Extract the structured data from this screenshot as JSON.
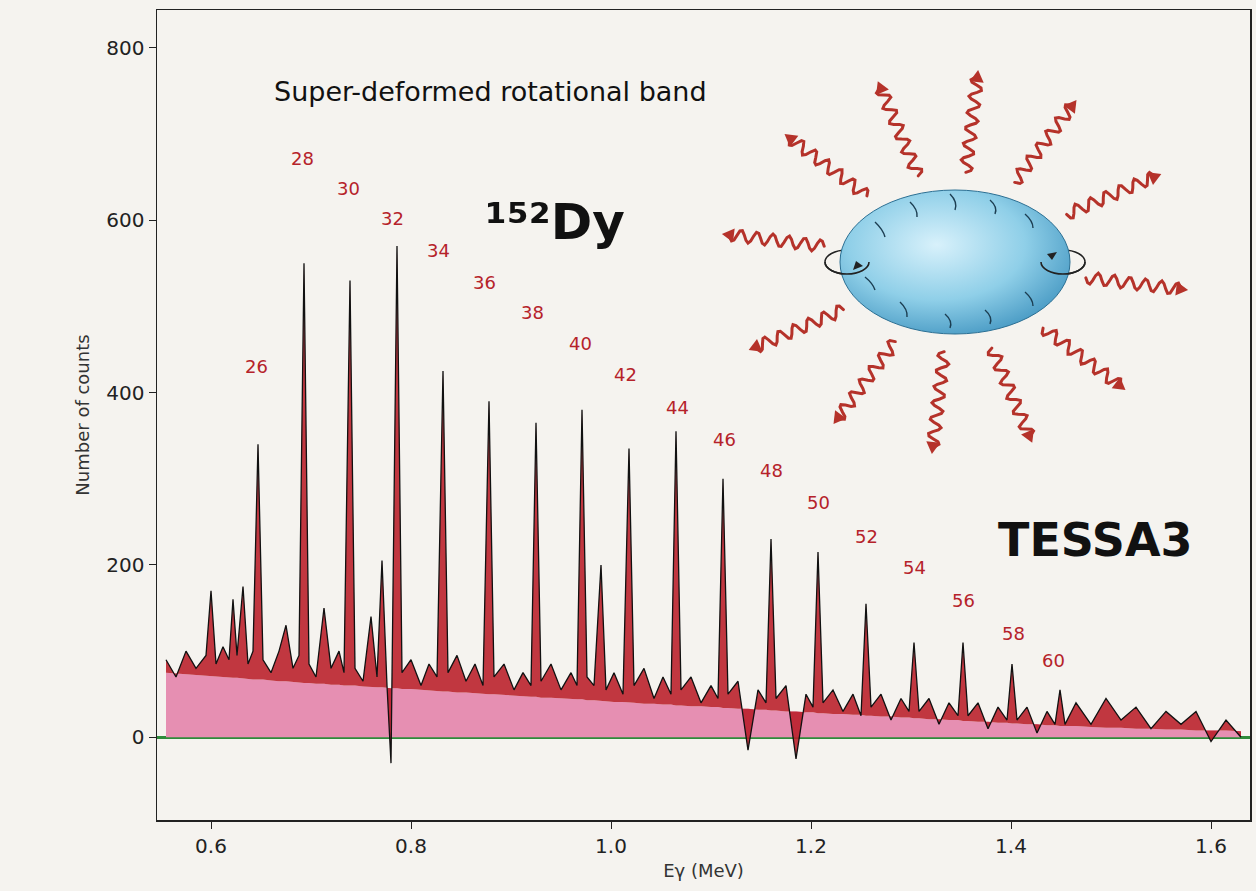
{
  "chart_data": {
    "type": "line",
    "x_label": "Eγ (MeV)",
    "y_label": "Number of counts",
    "xlim": [
      0.546,
      1.639
    ],
    "ylim": [
      -96,
      844
    ],
    "xticks": [
      0.6,
      0.8,
      {
        "value": 1,
        "label": "1.0"
      },
      1.2,
      1.4,
      1.6
    ],
    "yticks": [
      0,
      200,
      400,
      600,
      800
    ],
    "grid": false,
    "x": [
      0.555,
      0.565,
      0.575,
      0.585,
      0.595,
      0.6,
      0.605,
      0.612,
      0.618,
      0.622,
      0.626,
      0.632,
      0.637,
      0.642,
      0.647,
      0.652,
      0.66,
      0.668,
      0.675,
      0.682,
      0.688,
      0.693,
      0.698,
      0.705,
      0.713,
      0.72,
      0.728,
      0.733,
      0.739,
      0.744,
      0.752,
      0.76,
      0.766,
      0.771,
      0.776,
      0.78,
      0.786,
      0.791,
      0.8,
      0.81,
      0.818,
      0.826,
      0.832,
      0.837,
      0.846,
      0.855,
      0.864,
      0.872,
      0.878,
      0.883,
      0.893,
      0.903,
      0.912,
      0.92,
      0.925,
      0.93,
      0.94,
      0.95,
      0.96,
      0.966,
      0.971,
      0.976,
      0.983,
      0.99,
      0.995,
      1.003,
      1.012,
      1.018,
      1.023,
      1.033,
      1.043,
      1.052,
      1.06,
      1.065,
      1.07,
      1.08,
      1.09,
      1.1,
      1.107,
      1.112,
      1.117,
      1.127,
      1.137,
      1.147,
      1.155,
      1.16,
      1.165,
      1.175,
      1.185,
      1.195,
      1.202,
      1.207,
      1.212,
      1.222,
      1.232,
      1.242,
      1.25,
      1.255,
      1.26,
      1.27,
      1.28,
      1.29,
      1.298,
      1.303,
      1.308,
      1.318,
      1.328,
      1.338,
      1.347,
      1.352,
      1.357,
      1.367,
      1.377,
      1.387,
      1.396,
      1.401,
      1.406,
      1.416,
      1.426,
      1.436,
      1.444,
      1.449,
      1.454,
      1.465,
      1.48,
      1.495,
      1.51,
      1.525,
      1.54,
      1.555,
      1.57,
      1.585,
      1.6,
      1.615,
      1.63
    ],
    "series": [
      {
        "type": "area",
        "color": "#e68fb2",
        "values": [
          75,
          74,
          73,
          72,
          71,
          71,
          70,
          70,
          69,
          69,
          69,
          68,
          68,
          67,
          67,
          67,
          66,
          65,
          65,
          64,
          64,
          63,
          63,
          62,
          62,
          61,
          61,
          60,
          60,
          60,
          59,
          58,
          58,
          58,
          57,
          57,
          57,
          56,
          56,
          55,
          54,
          54,
          53,
          53,
          52,
          52,
          51,
          50,
          50,
          50,
          49,
          48,
          47,
          47,
          47,
          46,
          46,
          45,
          44,
          44,
          44,
          43,
          43,
          42,
          42,
          41,
          41,
          40,
          40,
          39,
          39,
          38,
          38,
          37,
          37,
          36,
          36,
          35,
          35,
          34,
          34,
          33,
          33,
          32,
          32,
          31,
          31,
          30,
          30,
          29,
          29,
          28,
          28,
          27,
          27,
          26,
          26,
          25,
          25,
          24,
          24,
          23,
          23,
          22,
          22,
          21,
          21,
          20,
          20,
          19,
          19,
          18,
          18,
          17,
          17,
          16,
          16,
          15,
          15,
          14,
          14,
          13,
          13,
          13,
          12,
          11,
          11,
          10,
          10,
          9,
          9,
          8,
          8,
          8,
          7
        ]
      },
      {
        "type": "line",
        "color": "#111111",
        "values": [
          90,
          70,
          100,
          80,
          95,
          170,
          85,
          105,
          90,
          160,
          95,
          175,
          85,
          100,
          340,
          90,
          75,
          100,
          130,
          80,
          95,
          550,
          85,
          70,
          150,
          80,
          100,
          75,
          530,
          80,
          65,
          140,
          70,
          205,
          60,
          -30,
          570,
          75,
          90,
          60,
          85,
          70,
          425,
          75,
          95,
          65,
          85,
          60,
          390,
          70,
          85,
          55,
          75,
          60,
          365,
          65,
          85,
          55,
          75,
          60,
          380,
          70,
          60,
          200,
          55,
          75,
          50,
          335,
          60,
          80,
          45,
          70,
          50,
          355,
          55,
          70,
          40,
          60,
          45,
          300,
          50,
          65,
          -15,
          55,
          40,
          230,
          45,
          60,
          -25,
          50,
          35,
          215,
          40,
          55,
          30,
          50,
          25,
          155,
          35,
          50,
          20,
          45,
          30,
          110,
          30,
          45,
          15,
          40,
          25,
          110,
          25,
          40,
          10,
          35,
          20,
          85,
          20,
          35,
          5,
          30,
          15,
          55,
          15,
          40,
          15,
          45,
          20,
          35,
          10,
          30,
          15,
          30,
          -5,
          20,
          0
        ]
      }
    ],
    "annotations": [
      {
        "text": "Super-deformed rotational band",
        "x": 0.879,
        "y": 749
      },
      {
        "text": "¹⁵²Dy",
        "x": 0.944,
        "y": 598
      },
      {
        "text": "TESSA3",
        "x": 1.484,
        "y": 229
      }
    ],
    "spin_labels": [
      {
        "text": "26",
        "x": 0.645,
        "y": 430
      },
      {
        "text": "28",
        "x": 0.691,
        "y": 672
      },
      {
        "text": "30",
        "x": 0.737,
        "y": 637
      },
      {
        "text": "32",
        "x": 0.781,
        "y": 602
      },
      {
        "text": "34",
        "x": 0.827,
        "y": 565
      },
      {
        "text": "36",
        "x": 0.873,
        "y": 528
      },
      {
        "text": "38",
        "x": 0.921,
        "y": 493
      },
      {
        "text": "40",
        "x": 0.969,
        "y": 457
      },
      {
        "text": "42",
        "x": 1.014,
        "y": 421
      },
      {
        "text": "44",
        "x": 1.066,
        "y": 383
      },
      {
        "text": "46",
        "x": 1.113,
        "y": 345
      },
      {
        "text": "48",
        "x": 1.16,
        "y": 310
      },
      {
        "text": "50",
        "x": 1.207,
        "y": 272
      },
      {
        "text": "52",
        "x": 1.255,
        "y": 233
      },
      {
        "text": "54",
        "x": 1.303,
        "y": 197
      },
      {
        "text": "56",
        "x": 1.352,
        "y": 159
      },
      {
        "text": "58",
        "x": 1.402,
        "y": 121
      },
      {
        "text": "60",
        "x": 1.442,
        "y": 89
      }
    ]
  }
}
